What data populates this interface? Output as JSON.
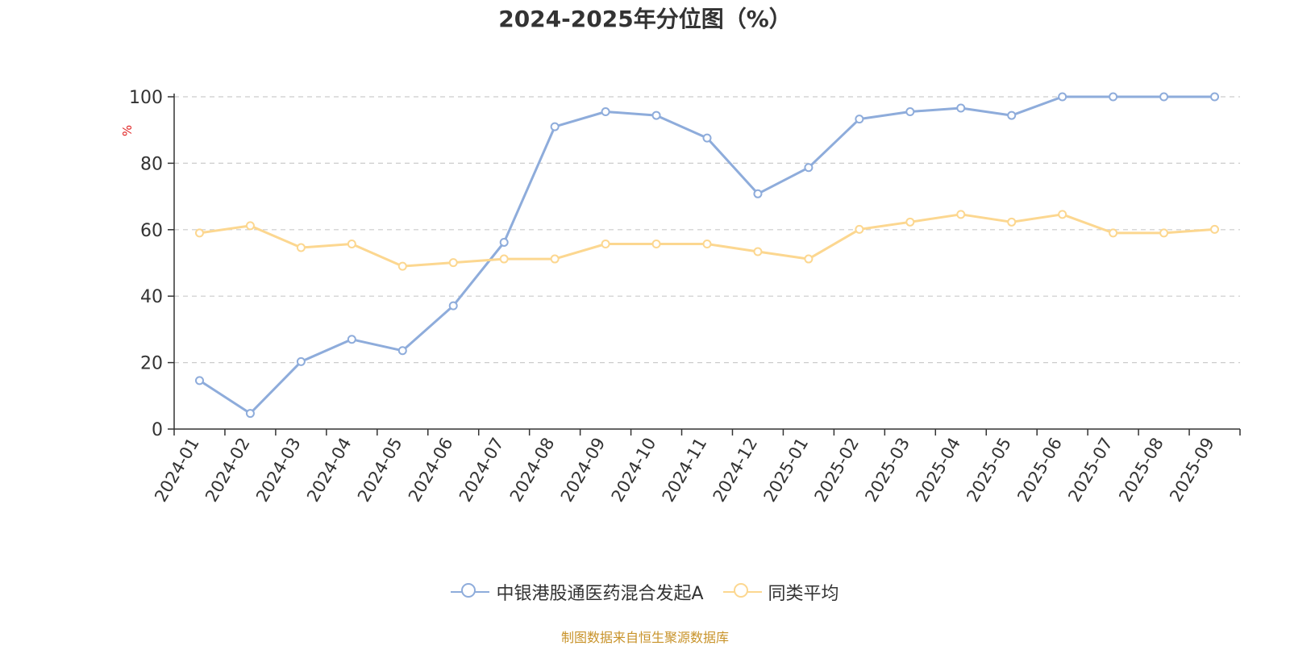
{
  "chart_data": {
    "type": "line",
    "title": "2024-2025年分位图（%）",
    "ylabel": "%",
    "xlabel": "",
    "ylim": [
      0,
      100
    ],
    "yticks": [
      0,
      20,
      40,
      60,
      80,
      100
    ],
    "grid": "horizontal dashed",
    "legend_position": "bottom",
    "categories": [
      "2024-01",
      "2024-02",
      "2024-03",
      "2024-04",
      "2024-05",
      "2024-06",
      "2024-07",
      "2024-08",
      "2024-09",
      "2024-10",
      "2024-11",
      "2024-12",
      "2025-01",
      "2025-02",
      "2025-03",
      "2025-04",
      "2025-05",
      "2025-06",
      "2025-07",
      "2025-08",
      "2025-09"
    ],
    "series": [
      {
        "name": "中银港股通医药混合发起A",
        "color": "#8eacdb",
        "values": [
          14.6,
          4.7,
          20.3,
          27.0,
          23.6,
          37.1,
          56.2,
          91.0,
          95.5,
          94.4,
          87.6,
          70.8,
          78.7,
          93.3,
          95.5,
          96.6,
          94.4,
          100,
          100,
          100,
          100
        ]
      },
      {
        "name": "同类平均",
        "color": "#fcd790",
        "values": [
          59.0,
          61.2,
          54.6,
          55.7,
          49.0,
          50.1,
          51.2,
          51.2,
          55.7,
          55.7,
          55.7,
          53.4,
          51.2,
          60.1,
          62.3,
          64.6,
          62.3,
          64.6,
          59.0,
          59.0,
          60.1
        ]
      }
    ]
  },
  "source_text": "制图数据来自恒生聚源数据库"
}
